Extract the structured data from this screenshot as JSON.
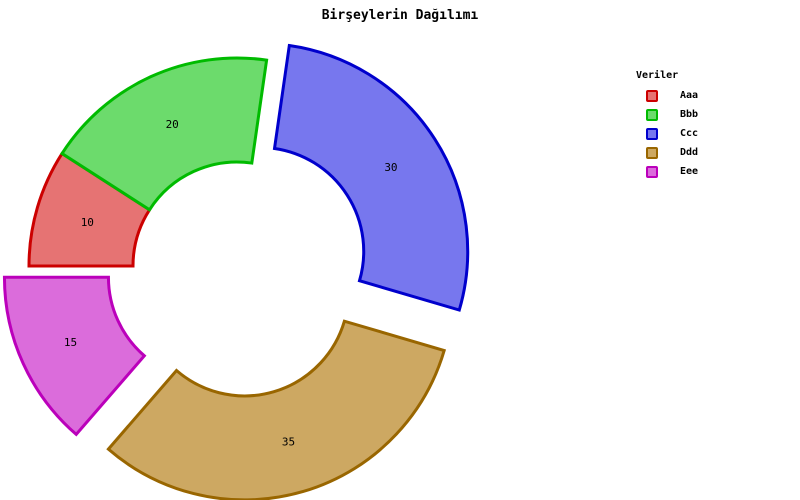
{
  "chart_data": {
    "type": "pie",
    "variant": "donut",
    "title": "Birşeylerin Dağılımı",
    "legend_title": "Veriler",
    "legend_position": "top-right",
    "start_angle_deg": 180,
    "direction": "clockwise",
    "slices": [
      {
        "label": "Aaa",
        "value": 10,
        "fill": "#e67373",
        "stroke": "#cc0000",
        "exploded": false
      },
      {
        "label": "Bbb",
        "value": 20,
        "fill": "#6cdb6c",
        "stroke": "#00bb00",
        "exploded": false
      },
      {
        "label": "Ccc",
        "value": 30,
        "fill": "#7777ee",
        "stroke": "#0000cc",
        "exploded": true
      },
      {
        "label": "Ddd",
        "value": 35,
        "fill": "#cda862",
        "stroke": "#996600",
        "exploded": true
      },
      {
        "label": "Eee",
        "value": 15,
        "fill": "#db6cdb",
        "stroke": "#bb00bb",
        "exploded": true
      }
    ]
  }
}
